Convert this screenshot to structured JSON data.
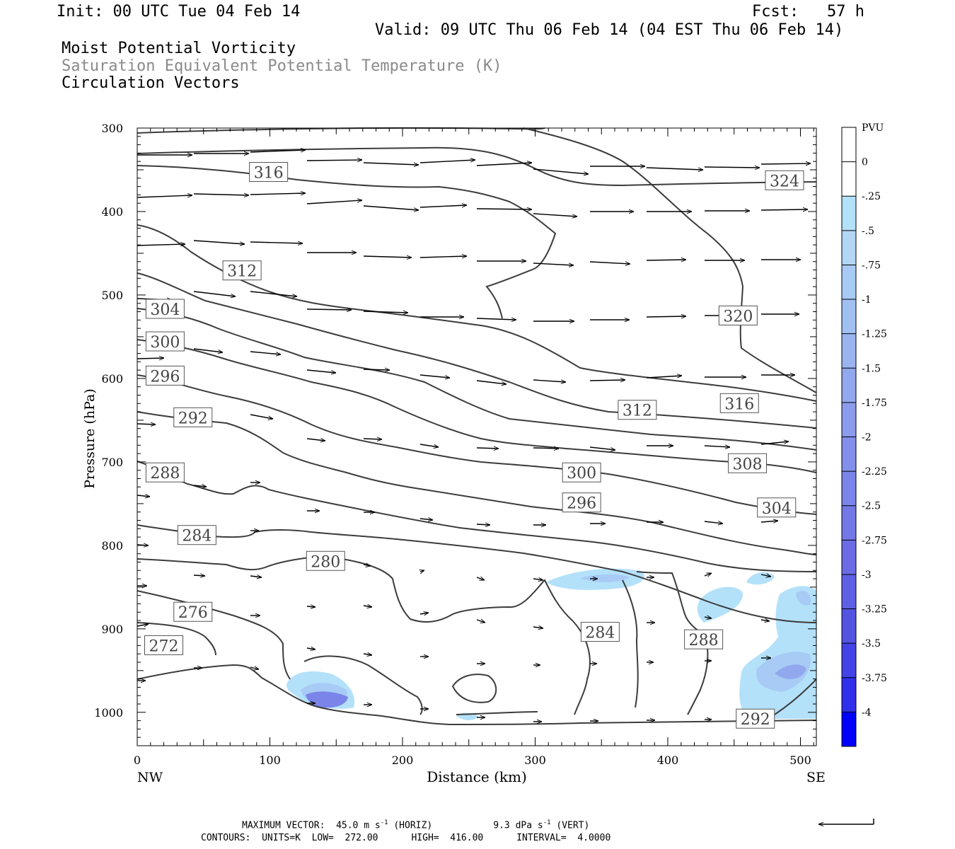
{
  "header": {
    "init": "Init: 00 UTC Tue 04 Feb 14",
    "fcst": "Fcst:   57 h",
    "valid": "Valid: 09 UTC Thu 06 Feb 14 (04 EST Thu 06 Feb 14)",
    "line1": "Moist Potential Vorticity",
    "line2": "Saturation Equivalent Potential Temperature (K)",
    "line3": "Circulation Vectors"
  },
  "chart_data": {
    "type": "cross-section",
    "xlabel": "Distance (km)",
    "ylabel": "Pressure (hPa)",
    "x_ticks": [
      0,
      100,
      200,
      300,
      400,
      500
    ],
    "y_ticks": [
      300,
      400,
      500,
      600,
      700,
      800,
      900,
      1000
    ],
    "xlim": [
      0,
      512
    ],
    "ylim": [
      1040,
      300
    ],
    "left_end_label": "NW",
    "right_end_label": "SE",
    "colorbar": {
      "title": "PVU",
      "levels": [
        "0",
        "-.25",
        "-.5",
        "-.75",
        "-1",
        "-1.25",
        "-1.5",
        "-1.75",
        "-2",
        "-2.25",
        "-2.5",
        "-2.75",
        "-3",
        "-3.25",
        "-3.5",
        "-3.75",
        "-4"
      ],
      "colors": [
        "#ffffff",
        "#ffffff",
        "#b4e1fa",
        "#b3d6f7",
        "#a8cbf5",
        "#a1c0f2",
        "#9ab4f0",
        "#92a8ee",
        "#8b9cec",
        "#8390ea",
        "#7b84e8",
        "#7378e6",
        "#6b6ce5",
        "#6060e4",
        "#5454e3",
        "#4343e8",
        "#3030ec",
        "#0000ff"
      ]
    },
    "contour_labels": [
      {
        "text": "316",
        "x": 99,
        "p": 353
      },
      {
        "text": "324",
        "x": 488,
        "p": 363
      },
      {
        "text": "312",
        "x": 79,
        "p": 471
      },
      {
        "text": "320",
        "x": 453,
        "p": 525
      },
      {
        "text": "304",
        "x": 21,
        "p": 517
      },
      {
        "text": "300",
        "x": 21,
        "p": 556
      },
      {
        "text": "296",
        "x": 21,
        "p": 597
      },
      {
        "text": "292",
        "x": 42,
        "p": 647
      },
      {
        "text": "312",
        "x": 377,
        "p": 638
      },
      {
        "text": "316",
        "x": 454,
        "p": 630
      },
      {
        "text": "308",
        "x": 460,
        "p": 702
      },
      {
        "text": "300",
        "x": 335,
        "p": 713
      },
      {
        "text": "288",
        "x": 21,
        "p": 713
      },
      {
        "text": "296",
        "x": 335,
        "p": 749
      },
      {
        "text": "304",
        "x": 482,
        "p": 755
      },
      {
        "text": "284",
        "x": 45,
        "p": 788
      },
      {
        "text": "280",
        "x": 142,
        "p": 819
      },
      {
        "text": "276",
        "x": 42,
        "p": 880
      },
      {
        "text": "272",
        "x": 20,
        "p": 920
      },
      {
        "text": "284",
        "x": 349,
        "p": 904
      },
      {
        "text": "288",
        "x": 427,
        "p": 913
      },
      {
        "text": "292",
        "x": 466,
        "p": 1008
      }
    ],
    "footer": {
      "max_vector_label": "MAXIMUM VECTOR:",
      "max_vector_horiz_value": "45.0",
      "max_vector_horiz_unit": "m s",
      "max_vector_horiz_exp": "-1",
      "max_vector_horiz_tag": "(HORIZ)",
      "max_vector_vert_value": "9.3",
      "max_vector_vert_unit": "dPa s",
      "max_vector_vert_exp": "-1",
      "max_vector_vert_tag": "(VERT)",
      "contours_label": "CONTOURS:",
      "units_label": "UNITS=K",
      "low_label": "LOW=",
      "low_value": "272.00",
      "high_label": "HIGH=",
      "high_value": "416.00",
      "interval_label": "INTERVAL=",
      "interval_value": "4.0000"
    }
  }
}
